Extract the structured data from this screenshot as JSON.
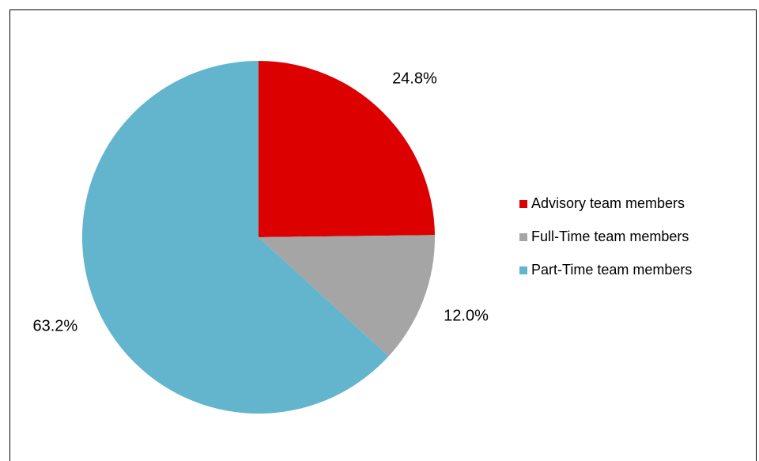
{
  "chart_data": {
    "type": "pie",
    "categories": [
      "Advisory team members",
      "Full-Time team members",
      "Part-Time team members"
    ],
    "values": [
      24.8,
      12.0,
      63.2
    ],
    "value_labels": [
      "24.8%",
      "12.0%",
      "63.2%"
    ],
    "colors": [
      "#dc0000",
      "#a5a5a5",
      "#62b5cc"
    ],
    "legend": "right"
  }
}
